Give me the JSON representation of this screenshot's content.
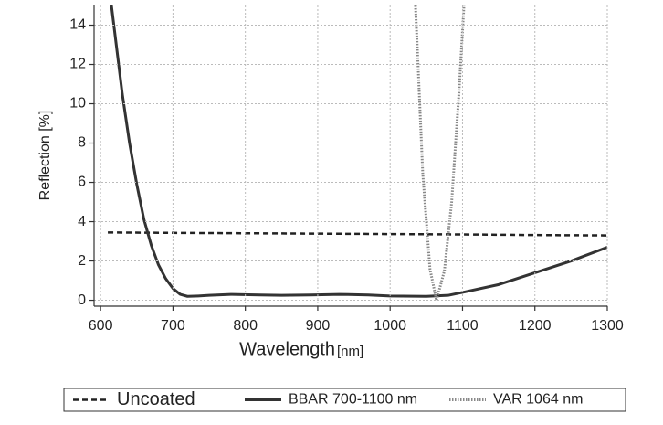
{
  "chart_data": {
    "type": "line",
    "x_label": "Wavelength",
    "x_unit": "[nm]",
    "y_label": "Reflection [%]",
    "xlim": [
      591,
      1300
    ],
    "ylim": [
      -0.3,
      15
    ],
    "xticks": [
      600,
      700,
      800,
      900,
      1000,
      1100,
      1200,
      1300
    ],
    "yticks": [
      0,
      2,
      4,
      6,
      8,
      10,
      12,
      14
    ],
    "grid": true,
    "legend": "bottom",
    "series": [
      {
        "name": "Uncoated",
        "color": "#222222",
        "dash": "dashed",
        "x": [
          610,
          700,
          800,
          900,
          1000,
          1100,
          1200,
          1300
        ],
        "values": [
          3.45,
          3.43,
          3.41,
          3.39,
          3.37,
          3.35,
          3.32,
          3.3
        ]
      },
      {
        "name": "BBAR 700-1100 nm",
        "color": "#333333",
        "dash": "solid",
        "x": [
          615,
          630,
          640,
          650,
          660,
          670,
          680,
          690,
          700,
          710,
          720,
          735,
          750,
          780,
          820,
          850,
          890,
          930,
          970,
          1000,
          1050,
          1080,
          1100,
          1150,
          1200,
          1250,
          1300
        ],
        "values": [
          15,
          10.5,
          8,
          5.9,
          4.1,
          2.8,
          1.8,
          1.1,
          0.6,
          0.3,
          0.2,
          0.22,
          0.25,
          0.3,
          0.27,
          0.25,
          0.27,
          0.3,
          0.27,
          0.22,
          0.2,
          0.25,
          0.4,
          0.8,
          1.4,
          2.0,
          2.7
        ]
      },
      {
        "name": "VAR 1064 nm",
        "color": "#888888",
        "dash": "dotted",
        "x": [
          1035,
          1045,
          1055,
          1064,
          1075,
          1085,
          1095,
          1102
        ],
        "values": [
          15,
          6.5,
          1.6,
          0,
          1.5,
          5,
          10.5,
          15
        ]
      }
    ]
  }
}
